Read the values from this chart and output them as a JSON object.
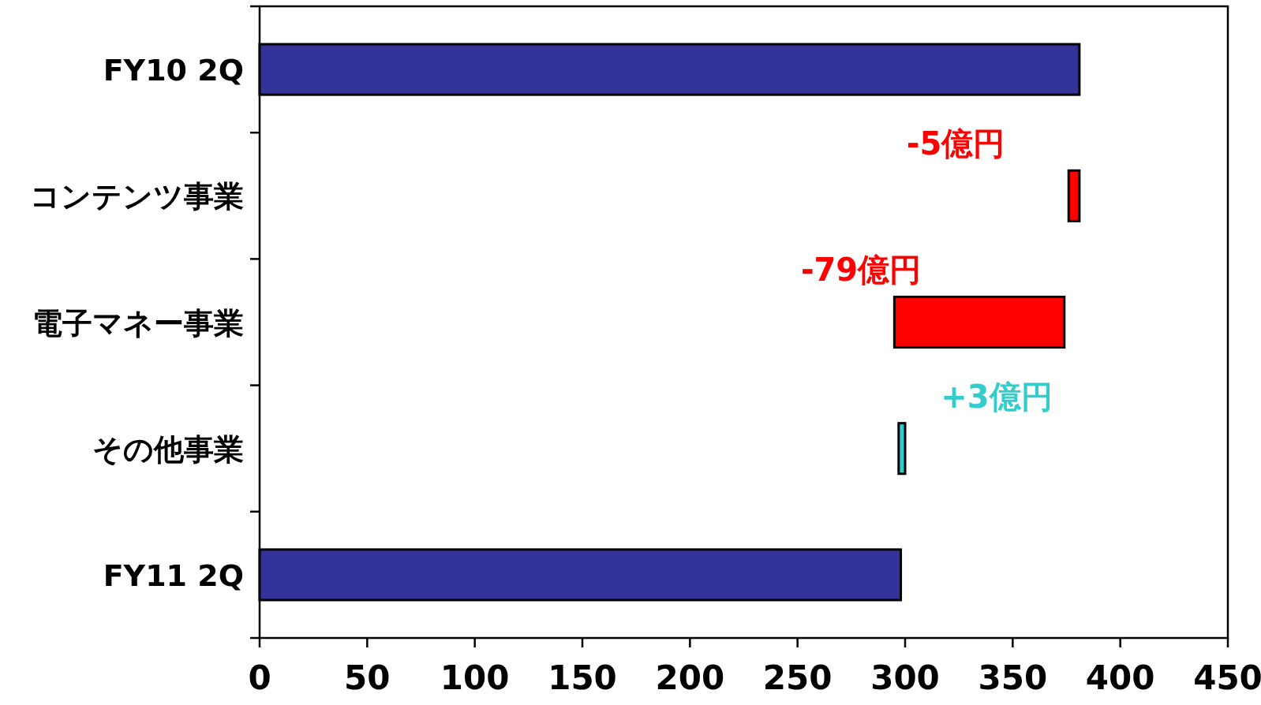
{
  "chart_data": {
    "type": "bar",
    "orientation": "horizontal",
    "categories": [
      "FY10 2Q",
      "コンテンツ事業",
      "電子マネー事業",
      "その他事業",
      "FY11 2Q"
    ],
    "values": [
      381,
      -5,
      -79,
      3,
      298
    ],
    "base": [
      0,
      381,
      374,
      297,
      0
    ],
    "colors": [
      "#333399",
      "#ff0000",
      "#ff0000",
      "#33cccc",
      "#333399"
    ],
    "value_labels": [
      null,
      "-5億円",
      "-79億円",
      "+3億円",
      null
    ],
    "xlim": [
      0,
      450
    ],
    "xticks": [
      0,
      50,
      100,
      150,
      200,
      250,
      300,
      350,
      400,
      450
    ]
  }
}
